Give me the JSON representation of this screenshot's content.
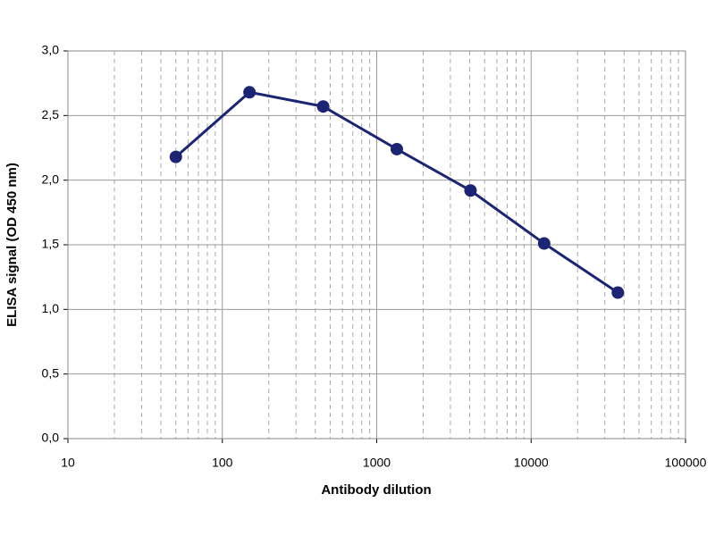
{
  "chart_data": {
    "type": "line",
    "x_label": "Antibody dilution",
    "y_label": "ELISA signal (OD 450 nm)",
    "x": [
      50,
      150,
      450,
      1350,
      4050,
      12150,
      36450
    ],
    "series": [
      {
        "color": "#1c2573",
        "values": [
          2.18,
          2.68,
          2.57,
          2.24,
          1.92,
          1.51,
          1.13
        ]
      }
    ],
    "x_scale": "log",
    "xlim": [
      10,
      100000
    ],
    "xticks": [
      10,
      100,
      1000,
      10000,
      100000
    ],
    "ylim": [
      0,
      3
    ],
    "yticks": [
      {
        "value": 0,
        "label": "0,0"
      },
      {
        "value": 0.5,
        "label": "0,5"
      },
      {
        "value": 1,
        "label": "1,0"
      },
      {
        "value": 1.5,
        "label": "1,5"
      },
      {
        "value": 2,
        "label": "2,0"
      },
      {
        "value": 2.5,
        "label": "2,5"
      },
      {
        "value": 3,
        "label": "3,0"
      }
    ],
    "grid": true,
    "minor_grid": true
  }
}
